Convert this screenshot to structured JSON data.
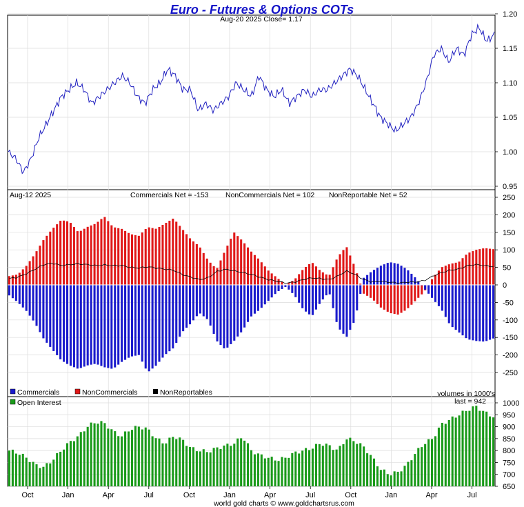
{
  "chart_data": {
    "title": "Euro - Futures & Options COTs",
    "footer": "world gold charts © www.goldchartsrus.com",
    "x_month_labels": [
      "Oct",
      "Jan",
      "Apr",
      "Jul",
      "Oct",
      "Jan",
      "Apr",
      "Jul",
      "Oct",
      "Jan",
      "Apr",
      "Jul"
    ],
    "panels": [
      {
        "id": "price",
        "type": "line",
        "header": "Aug-20  2025   Close= 1.17",
        "ylim": [
          0.95,
          1.2
        ],
        "yticks": [
          "1.20",
          "1.15",
          "1.10",
          "1.05",
          "1.00",
          "0.95"
        ],
        "color": "#2020c0",
        "anchors": [
          1.0,
          0.99,
          0.97,
          0.99,
          1.02,
          1.04,
          1.06,
          1.08,
          1.09,
          1.1,
          1.09,
          1.07,
          1.08,
          1.09,
          1.1,
          1.11,
          1.1,
          1.08,
          1.07,
          1.09,
          1.1,
          1.12,
          1.11,
          1.09,
          1.09,
          1.06,
          1.07,
          1.06,
          1.07,
          1.08,
          1.1,
          1.09,
          1.08,
          1.11,
          1.09,
          1.08,
          1.09,
          1.07,
          1.08,
          1.09,
          1.08,
          1.09,
          1.09,
          1.1,
          1.11,
          1.12,
          1.11,
          1.09,
          1.07,
          1.05,
          1.04,
          1.03,
          1.04,
          1.05,
          1.07,
          1.1,
          1.14,
          1.15,
          1.13,
          1.15,
          1.14,
          1.17,
          1.18,
          1.16,
          1.17
        ]
      },
      {
        "id": "cot",
        "type": "bar",
        "header_date": "Aug-12  2025",
        "labels": {
          "commercials": "Commercials Net = -153",
          "noncommercials": "NonCommercials Net = 102",
          "nonreportable": "NonReportable Net = 52"
        },
        "legend": [
          "Commercials",
          "NonCommercials",
          "NonReportables"
        ],
        "colors": {
          "commercials": "#1a1acc",
          "noncommercials": "#e01818",
          "nonreportables": "#000000"
        },
        "ylim": [
          -250,
          250
        ],
        "yticks": [
          "250",
          "200",
          "150",
          "100",
          "50",
          "0",
          "-50",
          "-100",
          "-150",
          "-200",
          "-250"
        ],
        "noncommercial_anchors": [
          25,
          30,
          55,
          90,
          130,
          160,
          185,
          180,
          150,
          165,
          175,
          195,
          165,
          160,
          145,
          140,
          165,
          160,
          175,
          190,
          160,
          130,
          110,
          70,
          45,
          100,
          150,
          125,
          95,
          70,
          40,
          20,
          0,
          15,
          45,
          65,
          40,
          25,
          80,
          110,
          50,
          -25,
          -40,
          -65,
          -80,
          -85,
          -70,
          -45,
          -20,
          20,
          50,
          60,
          65,
          90,
          100,
          105,
          102
        ],
        "commercial_anchors": [
          -30,
          -50,
          -75,
          -110,
          -155,
          -185,
          -215,
          -230,
          -240,
          -230,
          -225,
          -235,
          -240,
          -220,
          -205,
          -200,
          -250,
          -230,
          -200,
          -180,
          -135,
          -110,
          -80,
          -100,
          -160,
          -185,
          -160,
          -130,
          -90,
          -70,
          -45,
          -20,
          -5,
          -30,
          -70,
          -90,
          -50,
          -20,
          -120,
          -150,
          -100,
          20,
          40,
          55,
          65,
          60,
          45,
          20,
          -10,
          -40,
          -70,
          -115,
          -135,
          -155,
          -160,
          -162,
          -153
        ],
        "nonreportable_anchors": [
          18,
          22,
          32,
          45,
          58,
          62,
          55,
          58,
          60,
          58,
          55,
          57,
          55,
          55,
          50,
          48,
          52,
          48,
          45,
          42,
          30,
          22,
          15,
          20,
          38,
          45,
          40,
          35,
          30,
          22,
          15,
          10,
          5,
          8,
          15,
          20,
          18,
          15,
          25,
          40,
          30,
          15,
          8,
          10,
          8,
          5,
          8,
          8,
          12,
          25,
          35,
          42,
          45,
          55,
          58,
          55,
          52
        ]
      },
      {
        "id": "oi",
        "type": "bar",
        "legend": "Open Interest",
        "note_units": "volumes in 1000's",
        "note_last": "last = 942",
        "color": "#1a9a1a",
        "ylim": [
          650,
          1000
        ],
        "yticks": [
          "1000",
          "950",
          "900",
          "850",
          "800",
          "750",
          "700",
          "650"
        ],
        "anchors": [
          800,
          790,
          770,
          740,
          730,
          760,
          800,
          835,
          860,
          900,
          920,
          915,
          880,
          860,
          890,
          900,
          890,
          850,
          830,
          860,
          845,
          810,
          800,
          795,
          810,
          820,
          830,
          860,
          800,
          780,
          770,
          760,
          770,
          790,
          800,
          810,
          830,
          820,
          800,
          850,
          840,
          815,
          770,
          720,
          700,
          710,
          740,
          790,
          830,
          850,
          910,
          930,
          950,
          970,
          985,
          960,
          942
        ]
      }
    ]
  }
}
